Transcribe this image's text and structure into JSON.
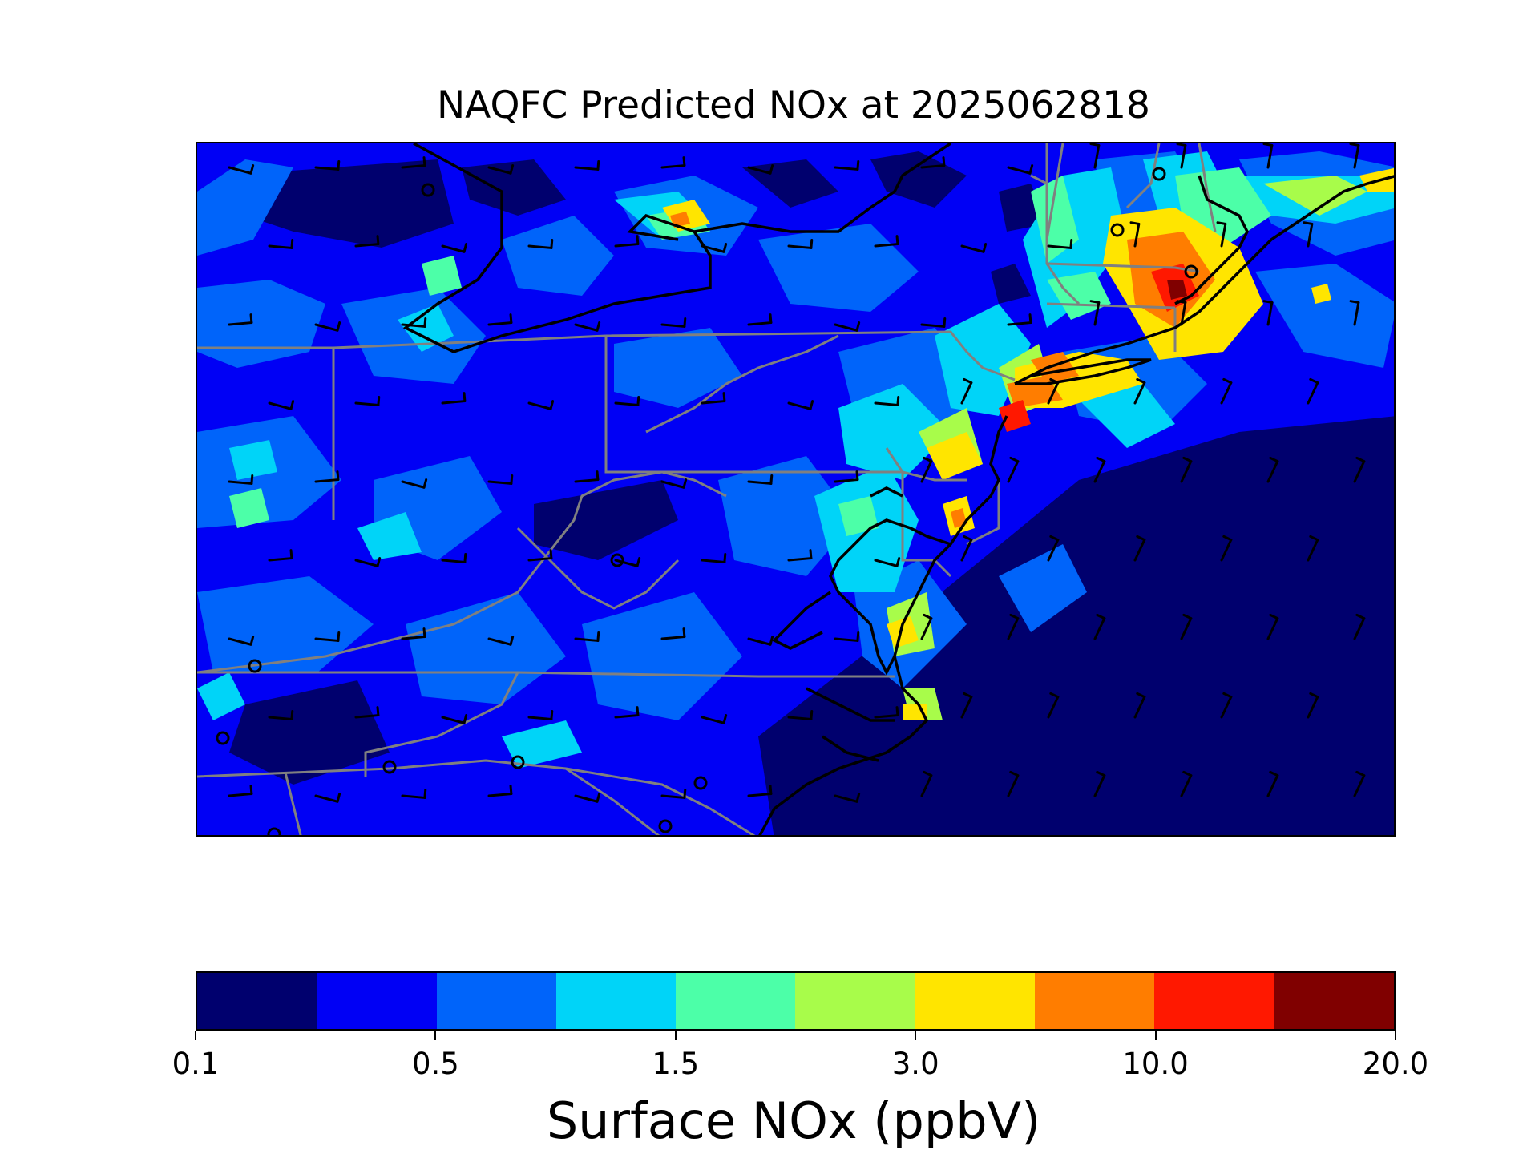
{
  "title": "NAQFC Predicted NOx at 2025062818",
  "colorbar": {
    "label": "Surface NOx (ppbV)",
    "colors": [
      "#00006e",
      "#0000f5",
      "#0064fa",
      "#00d4f8",
      "#4cffa8",
      "#a8fc4a",
      "#ffe500",
      "#ff7d00",
      "#ff1800",
      "#800000"
    ],
    "tick_labels": [
      "0.1",
      "0.5",
      "1.5",
      "3.0",
      "10.0",
      "20.0"
    ]
  },
  "map": {
    "variable": "Surface NOx",
    "units": "ppbV",
    "overlays": [
      "state-boundaries",
      "coastlines",
      "wind-barbs",
      "station-markers"
    ]
  }
}
